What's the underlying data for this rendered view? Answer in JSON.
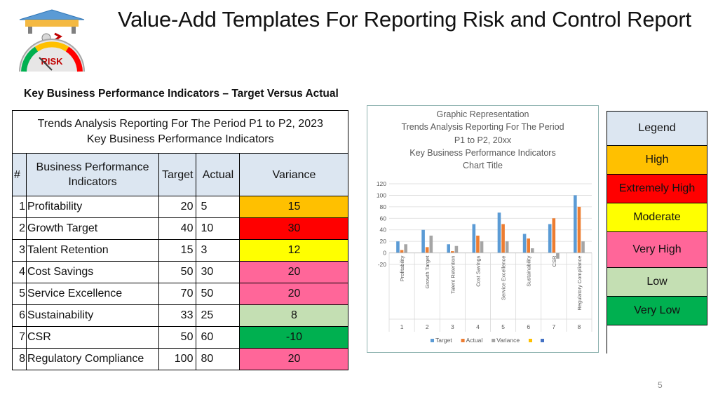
{
  "slide": {
    "title": "Value-Add Templates For Reporting Risk and Control Report",
    "subtitle": "Key Business Performance Indicators – Target Versus Actual",
    "page_number": "5",
    "logo_text": "RISK"
  },
  "table": {
    "caption_line1": "Trends Analysis Reporting For The Period  P1  to P2, 2023",
    "caption_line2": "Key Business Performance Indicators",
    "headers": {
      "num": "#",
      "indicator_line1": "Business Performance",
      "indicator_line2": "Indicators",
      "target": "Target",
      "actual": "Actual",
      "variance": "Variance"
    },
    "rows": [
      {
        "num": "1",
        "name": "Profitability",
        "target": "20",
        "actual": "5",
        "variance": "15",
        "color": "#ffc000"
      },
      {
        "num": "2",
        "name": "Growth Target",
        "target": "40",
        "actual": "10",
        "variance": "30",
        "color": "#ff0000"
      },
      {
        "num": "3",
        "name": "Talent Retention",
        "target": "15",
        "actual": "3",
        "variance": "12",
        "color": "#ffff00"
      },
      {
        "num": "4",
        "name": "Cost Savings",
        "target": "50",
        "actual": "30",
        "variance": "20",
        "color": "#ff6699"
      },
      {
        "num": "5",
        "name": "Service Excellence",
        "target": "70",
        "actual": "50",
        "variance": "20",
        "color": "#ff6699"
      },
      {
        "num": "6",
        "name": "Sustainability",
        "target": "33",
        "actual": "25",
        "variance": "8",
        "color": "#c4dfb3"
      },
      {
        "num": "7",
        "name": "CSR",
        "target": "50",
        "actual": "60",
        "variance": "-10",
        "color": "#00b050"
      },
      {
        "num": "8",
        "name": "Regulatory Compliance",
        "target": "100",
        "actual": "80",
        "variance": "20",
        "color": "#ff6699"
      }
    ]
  },
  "chart_data": {
    "type": "bar",
    "title_lines": [
      "Graphic Representation",
      "Trends Analysis Reporting For The Period",
      "P1  to P2, 20xx",
      "Key Business Performance Indicators",
      "Chart Title"
    ],
    "categories": [
      "Profitability",
      "Growth Target",
      "Talent Retention",
      "Cost Savings",
      "Service Excellence",
      "Sustainability",
      "CSR",
      "Regulatory Compliance"
    ],
    "category_numbers": [
      "1",
      "2",
      "3",
      "4",
      "5",
      "6",
      "7",
      "8"
    ],
    "series": [
      {
        "name": "Target",
        "color": "#5b9bd5",
        "values": [
          20,
          40,
          15,
          50,
          70,
          33,
          50,
          100
        ]
      },
      {
        "name": "Actual",
        "color": "#ed7d31",
        "values": [
          5,
          10,
          3,
          30,
          50,
          25,
          60,
          80
        ]
      },
      {
        "name": "Variance",
        "color": "#a5a5a5",
        "values": [
          15,
          30,
          12,
          20,
          20,
          8,
          -10,
          20
        ]
      }
    ],
    "extra_legend_markers": [
      {
        "name": "",
        "color": "#ffc000"
      },
      {
        "name": "",
        "color": "#4472c4"
      }
    ],
    "yticks": [
      -20,
      0,
      20,
      40,
      60,
      80,
      100,
      120
    ],
    "ylim": [
      -20,
      120
    ],
    "grid": true,
    "legend_position": "bottom"
  },
  "legend": {
    "title": "Legend",
    "items": [
      {
        "label": "High",
        "color": "#ffc000"
      },
      {
        "label": "Extremely High",
        "color": "#ff0000"
      },
      {
        "label": "Moderate",
        "color": "#ffff00"
      },
      {
        "label": "Very High",
        "color": "#ff6699"
      },
      {
        "label": "Low",
        "color": "#c4dfb3"
      },
      {
        "label": "Very Low",
        "color": "#00b050"
      }
    ],
    "header_color": "#dce6f1"
  }
}
